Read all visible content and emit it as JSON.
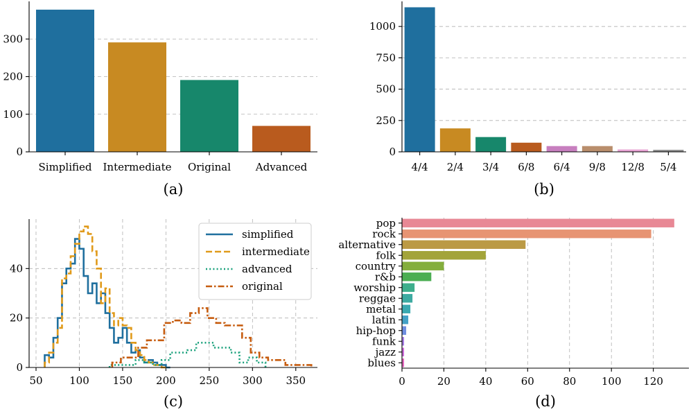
{
  "chart_data": [
    {
      "id": "a",
      "type": "bar",
      "caption": "(a)",
      "categories": [
        "Simplified",
        "Intermediate",
        "Original",
        "Advanced"
      ],
      "values": [
        378,
        291,
        191,
        69
      ],
      "colors": [
        "#1f6f9e",
        "#c88a22",
        "#17876b",
        "#b95b1e"
      ],
      "ylim": [
        0,
        400
      ],
      "yticks": [
        0,
        100,
        200,
        300
      ],
      "grid": true
    },
    {
      "id": "b",
      "type": "bar",
      "caption": "(b)",
      "categories": [
        "4/4",
        "2/4",
        "3/4",
        "6/8",
        "6/4",
        "9/8",
        "12/8",
        "5/4"
      ],
      "values": [
        1153,
        187,
        118,
        73,
        46,
        46,
        19,
        16
      ],
      "colors": [
        "#1f6f9e",
        "#c88a22",
        "#17876b",
        "#b95b1e",
        "#c77fbf",
        "#b98e6c",
        "#e8a5d5",
        "#8c8c8c"
      ],
      "ylim": [
        0,
        1200
      ],
      "yticks": [
        0,
        250,
        500,
        750,
        1000
      ],
      "grid": true
    },
    {
      "id": "c",
      "type": "line",
      "subtype": "step-histogram",
      "caption": "(c)",
      "xlim": [
        42,
        375
      ],
      "ylim": [
        0,
        60
      ],
      "xticks": [
        50,
        100,
        150,
        200,
        250,
        300,
        350
      ],
      "yticks": [
        0,
        20,
        40
      ],
      "legend_position": "top-right",
      "grid": true,
      "series": [
        {
          "name": "simplified",
          "color": "#1f6f9e",
          "dash": "solid",
          "edges": [
            60,
            65,
            70,
            75,
            80,
            85,
            90,
            95,
            100,
            105,
            110,
            115,
            120,
            125,
            130,
            135,
            140,
            145,
            150,
            155,
            160,
            165,
            170,
            175,
            180,
            185,
            190,
            195,
            200,
            205
          ],
          "counts": [
            5,
            4,
            12,
            20,
            34,
            40,
            42,
            52,
            48,
            37,
            30,
            34,
            26,
            30,
            22,
            16,
            10,
            12,
            16,
            10,
            6,
            7,
            4,
            2,
            3,
            2,
            1,
            1,
            0
          ]
        },
        {
          "name": "intermediate",
          "color": "#e09a1a",
          "dash": "dashed",
          "edges": [
            60,
            65,
            70,
            75,
            80,
            85,
            90,
            95,
            100,
            105,
            110,
            115,
            120,
            125,
            130,
            135,
            140,
            145,
            150,
            155,
            160,
            165,
            170,
            175,
            180,
            185,
            190,
            195,
            200
          ],
          "counts": [
            2,
            6,
            10,
            16,
            36,
            38,
            45,
            50,
            55,
            57,
            54,
            47,
            40,
            26,
            32,
            22,
            17,
            20,
            17,
            16,
            10,
            7,
            5,
            3,
            2,
            1,
            1,
            0
          ]
        },
        {
          "name": "advanced",
          "color": "#17a07a",
          "dash": "dotted",
          "edges": [
            135,
            145,
            155,
            165,
            175,
            185,
            195,
            205,
            215,
            225,
            235,
            245,
            255,
            265,
            275,
            285,
            295,
            305,
            315
          ],
          "counts": [
            1,
            1,
            1,
            3,
            2,
            1,
            3,
            6,
            6,
            7,
            10,
            10,
            8,
            8,
            6,
            2,
            4,
            2
          ]
        },
        {
          "name": "original",
          "color": "#c65c0f",
          "dash": "dashdot",
          "edges": [
            138,
            148,
            158,
            168,
            178,
            188,
            198,
            208,
            218,
            228,
            238,
            248,
            258,
            268,
            278,
            288,
            298,
            308,
            318,
            328,
            338,
            348,
            358,
            368
          ],
          "counts": [
            2,
            4,
            4,
            8,
            11,
            11,
            18,
            19,
            18,
            22,
            24,
            20,
            18,
            17,
            17,
            12,
            6,
            4,
            3,
            3,
            1,
            1,
            1
          ]
        }
      ]
    },
    {
      "id": "d",
      "type": "bar",
      "orientation": "horizontal",
      "caption": "(d)",
      "categories": [
        "pop",
        "rock",
        "alternative",
        "folk",
        "country",
        "r&b",
        "worship",
        "reggae",
        "metal",
        "latin",
        "hip-hop",
        "funk",
        "jazz",
        "blues"
      ],
      "values": [
        130,
        119,
        59,
        40,
        20,
        14,
        6,
        5,
        4,
        3,
        2,
        1,
        1,
        1
      ],
      "colors": [
        "#e88895",
        "#e79473",
        "#bb9a45",
        "#a3a43a",
        "#84ae3d",
        "#4cae53",
        "#3eae8c",
        "#3daaa1",
        "#3aa9b0",
        "#43a1c6",
        "#6f8ee0",
        "#a87fe6",
        "#cf6fdc",
        "#e56ac0"
      ],
      "xlim": [
        0,
        137
      ],
      "xticks": [
        0,
        20,
        40,
        60,
        80,
        100,
        120
      ],
      "grid": true
    }
  ]
}
